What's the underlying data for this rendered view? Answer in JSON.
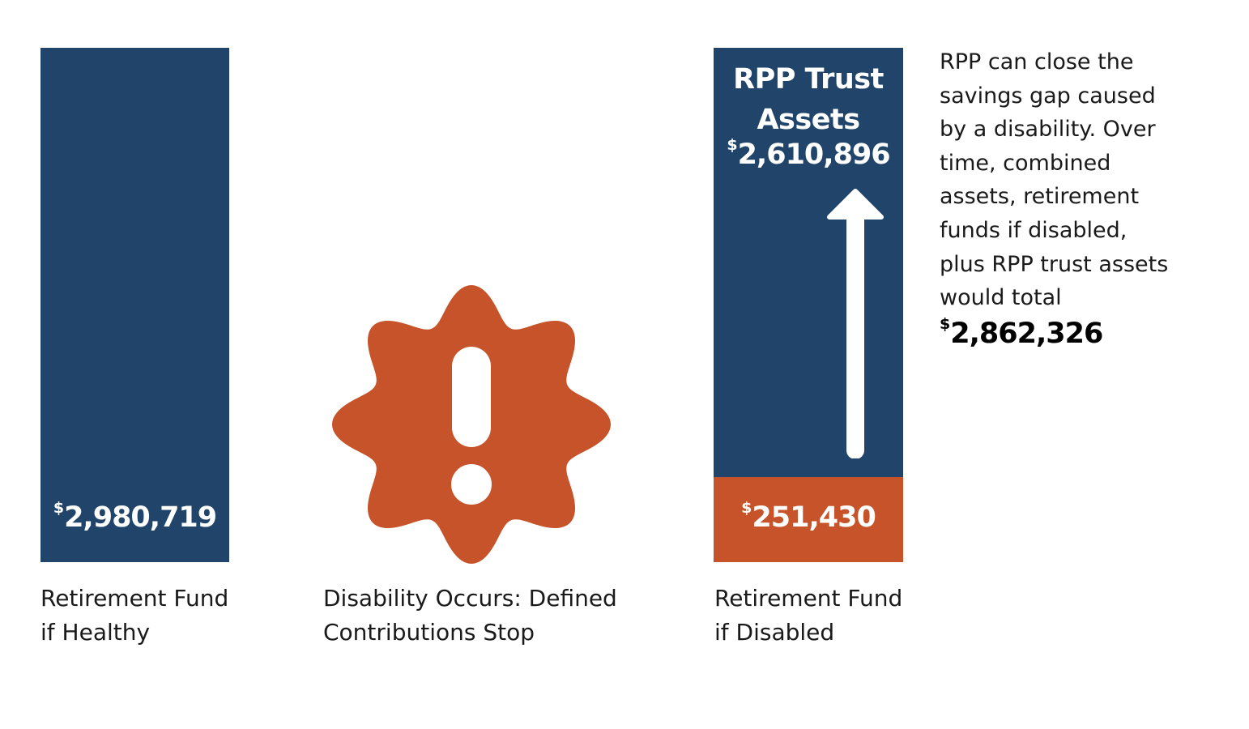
{
  "colors": {
    "navy": "#21446a",
    "orange": "#c6532a",
    "white": "#ffffff",
    "text": "#1a1a1a"
  },
  "healthy": {
    "currency": "$",
    "value": "2,980,719",
    "caption_line1": "Retirement Fund",
    "caption_line2": "if Healthy"
  },
  "disability": {
    "icon": "warning-burst-icon",
    "caption_line1": "Disability Occurs: Defined",
    "caption_line2": "Contributions Stop"
  },
  "rpp": {
    "title_line1": "RPP Trust",
    "title_line2": "Assets",
    "currency": "$",
    "value": "2,610,896",
    "icon": "arrow-up-icon"
  },
  "disabled": {
    "currency": "$",
    "value": "251,430",
    "caption_line1": "Retirement Fund",
    "caption_line2": "if Disabled"
  },
  "note": {
    "lines": [
      "RPP can close the",
      "savings gap caused",
      "by a disability. Over",
      "time, combined",
      "assets, retirement",
      "funds if disabled,",
      "plus RPP trust assets",
      "would total"
    ],
    "total_currency": "$",
    "total_value": "2,862,326"
  }
}
